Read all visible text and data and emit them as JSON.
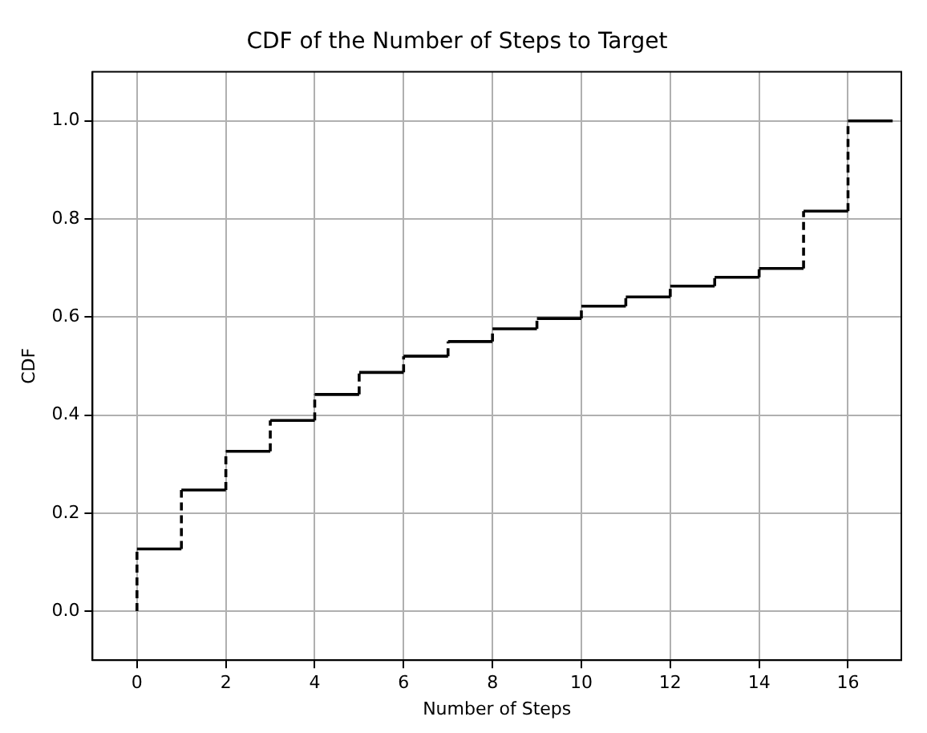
{
  "chart_data": {
    "type": "step",
    "title": "CDF of the Number of Steps to Target",
    "xlabel": "Number of Steps",
    "ylabel": "CDF",
    "x": [
      0,
      0,
      1,
      2,
      3,
      4,
      5,
      6,
      7,
      8,
      9,
      10,
      11,
      12,
      13,
      14,
      15,
      16,
      17
    ],
    "series": [
      {
        "color": "#000000",
        "values": [
          0,
          0.127,
          0.247,
          0.326,
          0.389,
          0.442,
          0.487,
          0.52,
          0.55,
          0.576,
          0.597,
          0.622,
          0.641,
          0.663,
          0.681,
          0.699,
          0.816,
          1.0,
          1.0
        ]
      }
    ],
    "xlim": [
      -1,
      17.2
    ],
    "xticks": [
      0,
      2,
      4,
      6,
      8,
      10,
      12,
      14,
      16
    ],
    "ylim": [
      -0.1,
      1.1
    ],
    "yticks": [
      {
        "value": 0,
        "label": "0.0"
      },
      {
        "value": 0.2,
        "label": "0.2"
      },
      {
        "value": 0.4,
        "label": "0.4"
      },
      {
        "value": 0.6,
        "label": "0.6"
      },
      {
        "value": 0.8,
        "label": "0.8"
      },
      {
        "value": 1,
        "label": "1.0"
      }
    ],
    "grid": true,
    "legend": false
  }
}
